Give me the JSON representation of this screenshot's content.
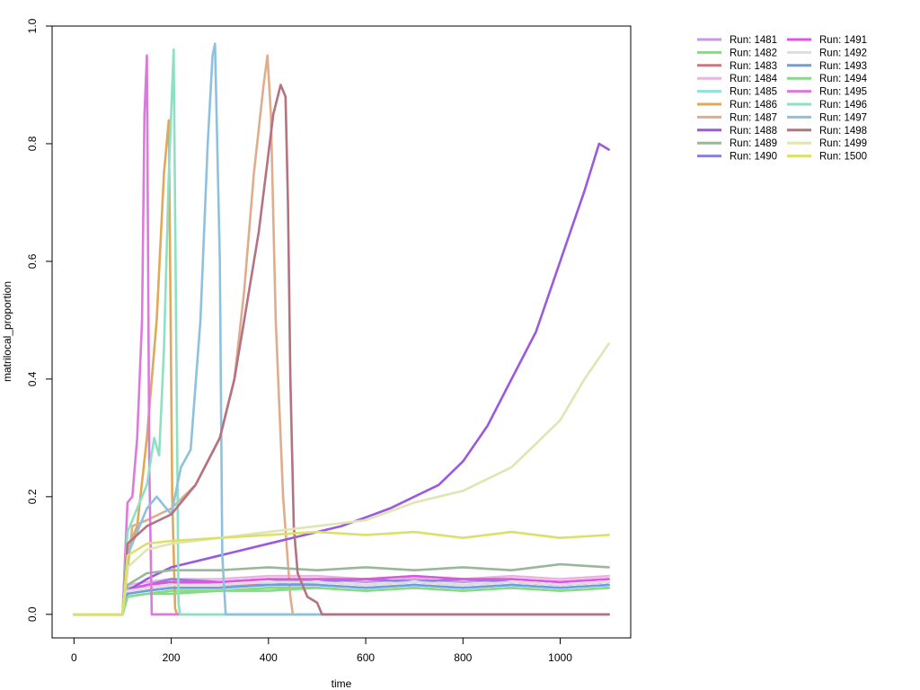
{
  "chart_data": {
    "type": "line",
    "title": "",
    "xlabel": "time",
    "ylabel": "matrilocal_proportion",
    "xlim": [
      -45,
      1145
    ],
    "ylim": [
      -0.04,
      1.0
    ],
    "x_ticks": [
      "0",
      "200",
      "400",
      "600",
      "800",
      "1000"
    ],
    "y_ticks": [
      "0.0",
      "0.2",
      "0.4",
      "0.6",
      "0.8",
      "1.0"
    ],
    "grid": false,
    "legend_position": "top-right outside plot",
    "series": [
      {
        "name": "Run: 1481",
        "color": "#c39be0",
        "x": [
          0,
          100,
          110,
          150,
          200,
          300,
          400,
          500,
          600,
          700,
          800,
          900,
          1000,
          1100
        ],
        "y": [
          0,
          0,
          0.045,
          0.05,
          0.055,
          0.05,
          0.055,
          0.06,
          0.055,
          0.06,
          0.055,
          0.06,
          0.055,
          0.06
        ]
      },
      {
        "name": "Run: 1482",
        "color": "#7ee07a",
        "x": [
          0,
          100,
          110,
          150,
          200,
          300,
          400,
          500,
          600,
          700,
          800,
          900,
          1000,
          1100
        ],
        "y": [
          0,
          0,
          0.03,
          0.035,
          0.04,
          0.04,
          0.045,
          0.045,
          0.04,
          0.045,
          0.04,
          0.045,
          0.04,
          0.045
        ]
      },
      {
        "name": "Run: 1483",
        "color": "#e06e7a",
        "x": [
          0,
          100,
          110,
          150,
          200,
          300,
          400,
          500,
          600,
          700,
          800,
          900,
          1000,
          1100
        ],
        "y": [
          0,
          0,
          0.04,
          0.045,
          0.05,
          0.05,
          0.05,
          0.055,
          0.05,
          0.055,
          0.05,
          0.055,
          0.05,
          0.055
        ]
      },
      {
        "name": "Run: 1484",
        "color": "#ebb3e0",
        "x": [
          0,
          100,
          110,
          150,
          200,
          300,
          400,
          500,
          600,
          700,
          800,
          900,
          1000,
          1100
        ],
        "y": [
          0,
          0,
          0.05,
          0.055,
          0.06,
          0.06,
          0.065,
          0.065,
          0.06,
          0.065,
          0.06,
          0.065,
          0.06,
          0.065
        ]
      },
      {
        "name": "Run: 1485",
        "color": "#8fe0de",
        "x": [
          0,
          100,
          110,
          150,
          200,
          300,
          400,
          500,
          600,
          700,
          800,
          900,
          1000,
          1100
        ],
        "y": [
          0,
          0,
          0.035,
          0.04,
          0.045,
          0.045,
          0.05,
          0.05,
          0.045,
          0.05,
          0.045,
          0.05,
          0.045,
          0.05
        ]
      },
      {
        "name": "Run: 1486",
        "color": "#e0a858",
        "x": [
          0,
          100,
          115,
          130,
          150,
          170,
          185,
          195,
          202,
          208,
          212,
          220,
          1100
        ],
        "y": [
          0,
          0,
          0.12,
          0.15,
          0.3,
          0.5,
          0.75,
          0.84,
          0.2,
          0.01,
          0,
          0,
          0
        ]
      },
      {
        "name": "Run: 1487",
        "color": "#e0ad8c",
        "x": [
          0,
          100,
          120,
          150,
          200,
          250,
          300,
          330,
          350,
          370,
          390,
          398,
          405,
          415,
          430,
          445,
          450,
          1100
        ],
        "y": [
          0,
          0,
          0.15,
          0.16,
          0.18,
          0.22,
          0.3,
          0.4,
          0.55,
          0.75,
          0.9,
          0.95,
          0.85,
          0.5,
          0.2,
          0.03,
          0,
          0
        ]
      },
      {
        "name": "Run: 1488",
        "color": "#9b59e0",
        "x": [
          0,
          100,
          110,
          150,
          200,
          300,
          400,
          500,
          550,
          600,
          650,
          700,
          750,
          800,
          850,
          900,
          950,
          1000,
          1050,
          1080,
          1100
        ],
        "y": [
          0,
          0,
          0.04,
          0.06,
          0.08,
          0.1,
          0.12,
          0.14,
          0.15,
          0.165,
          0.18,
          0.2,
          0.22,
          0.26,
          0.32,
          0.4,
          0.48,
          0.6,
          0.72,
          0.8,
          0.79
        ]
      },
      {
        "name": "Run: 1489",
        "color": "#99b89a",
        "x": [
          0,
          100,
          110,
          150,
          200,
          300,
          400,
          500,
          600,
          700,
          800,
          900,
          1000,
          1100
        ],
        "y": [
          0,
          0,
          0.05,
          0.07,
          0.075,
          0.075,
          0.08,
          0.075,
          0.08,
          0.075,
          0.08,
          0.075,
          0.085,
          0.08
        ]
      },
      {
        "name": "Run: 1490",
        "color": "#8a80e0",
        "x": [
          0,
          100,
          110,
          150,
          200,
          300,
          400,
          500,
          600,
          700,
          800,
          900,
          1000,
          1100
        ],
        "y": [
          0,
          0,
          0.04,
          0.05,
          0.06,
          0.055,
          0.06,
          0.055,
          0.06,
          0.055,
          0.06,
          0.055,
          0.05,
          0.055
        ]
      },
      {
        "name": "Run: 1491",
        "color": "#e055e0",
        "x": [
          0,
          100,
          110,
          150,
          200,
          300,
          400,
          500,
          600,
          700,
          800,
          900,
          1000,
          1100
        ],
        "y": [
          0,
          0,
          0.04,
          0.05,
          0.055,
          0.055,
          0.06,
          0.06,
          0.06,
          0.065,
          0.06,
          0.06,
          0.055,
          0.06
        ]
      },
      {
        "name": "Run: 1492",
        "color": "#dedede",
        "x": [
          0,
          100,
          110,
          150,
          200,
          300,
          400,
          500,
          600,
          700,
          800,
          900,
          1000,
          1100
        ],
        "y": [
          0,
          0,
          0.04,
          0.045,
          0.05,
          0.05,
          0.055,
          0.055,
          0.05,
          0.055,
          0.05,
          0.055,
          0.05,
          0.055
        ]
      },
      {
        "name": "Run: 1493",
        "color": "#6e9ee0",
        "x": [
          0,
          100,
          110,
          150,
          200,
          300,
          400,
          500,
          600,
          700,
          800,
          900,
          1000,
          1100
        ],
        "y": [
          0,
          0,
          0.035,
          0.04,
          0.045,
          0.045,
          0.05,
          0.05,
          0.045,
          0.05,
          0.045,
          0.05,
          0.045,
          0.05
        ]
      },
      {
        "name": "Run: 1494",
        "color": "#8ad88a",
        "x": [
          0,
          100,
          110,
          150,
          200,
          300,
          400,
          500,
          600,
          700,
          800,
          900,
          1000,
          1100
        ],
        "y": [
          0,
          0,
          0.03,
          0.035,
          0.035,
          0.04,
          0.04,
          0.045,
          0.04,
          0.045,
          0.04,
          0.045,
          0.04,
          0.045
        ]
      },
      {
        "name": "Run: 1495",
        "color": "#dc7adc",
        "x": [
          0,
          100,
          110,
          120,
          130,
          140,
          145,
          150,
          155,
          160,
          1100
        ],
        "y": [
          0,
          0,
          0.19,
          0.2,
          0.3,
          0.5,
          0.85,
          0.95,
          0.25,
          0,
          0
        ]
      },
      {
        "name": "Run: 1496",
        "color": "#8ee0c4",
        "x": [
          0,
          100,
          110,
          130,
          150,
          165,
          175,
          185,
          195,
          205,
          210,
          215,
          218,
          1100
        ],
        "y": [
          0,
          0,
          0.14,
          0.18,
          0.22,
          0.3,
          0.27,
          0.45,
          0.75,
          0.96,
          0.5,
          0.02,
          0,
          0
        ]
      },
      {
        "name": "Run: 1497",
        "color": "#8ec0e0",
        "x": [
          0,
          100,
          110,
          150,
          170,
          200,
          220,
          240,
          260,
          275,
          285,
          290,
          300,
          305,
          312,
          1100
        ],
        "y": [
          0,
          0,
          0.1,
          0.18,
          0.2,
          0.17,
          0.25,
          0.28,
          0.5,
          0.8,
          0.95,
          0.97,
          0.6,
          0.1,
          0,
          0
        ]
      },
      {
        "name": "Run: 1498",
        "color": "#b57280",
        "x": [
          0,
          100,
          110,
          150,
          200,
          250,
          300,
          330,
          350,
          380,
          410,
          425,
          435,
          440,
          445,
          452,
          460,
          470,
          480,
          500,
          510,
          1100
        ],
        "y": [
          0,
          0,
          0.12,
          0.15,
          0.17,
          0.22,
          0.3,
          0.4,
          0.5,
          0.65,
          0.85,
          0.9,
          0.88,
          0.7,
          0.4,
          0.15,
          0.07,
          0.05,
          0.03,
          0.02,
          0,
          0
        ]
      },
      {
        "name": "Run: 1499",
        "color": "#dfe6b3",
        "x": [
          0,
          100,
          110,
          150,
          200,
          300,
          400,
          500,
          600,
          650,
          700,
          750,
          800,
          850,
          900,
          950,
          1000,
          1050,
          1100
        ],
        "y": [
          0,
          0,
          0.08,
          0.11,
          0.12,
          0.13,
          0.14,
          0.15,
          0.16,
          0.175,
          0.19,
          0.2,
          0.21,
          0.23,
          0.25,
          0.29,
          0.33,
          0.4,
          0.46
        ]
      },
      {
        "name": "Run: 1500",
        "color": "#dbe06a",
        "x": [
          0,
          100,
          110,
          150,
          200,
          300,
          400,
          500,
          600,
          700,
          800,
          900,
          1000,
          1100
        ],
        "y": [
          0,
          0,
          0.1,
          0.12,
          0.125,
          0.13,
          0.135,
          0.14,
          0.135,
          0.14,
          0.13,
          0.14,
          0.13,
          0.135
        ]
      }
    ]
  }
}
